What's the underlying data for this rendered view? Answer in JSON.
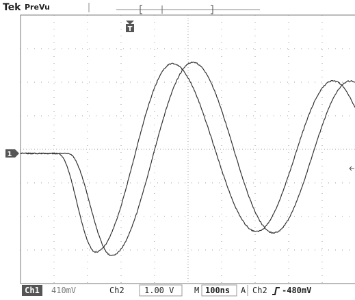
{
  "header": {
    "brand": "Tek",
    "mode": "PreVu"
  },
  "markers": {
    "trigger": "T",
    "channel1": "1"
  },
  "status": {
    "ch1_label": "Ch1",
    "ch1_scale": "410mV",
    "ch2_label": "Ch2",
    "ch2_scale": "1.00 V",
    "time_label": "M",
    "time_scale": "100ns",
    "trigger_label": "A",
    "trigger_source": "Ch2",
    "trigger_level": "-480mV"
  }
}
